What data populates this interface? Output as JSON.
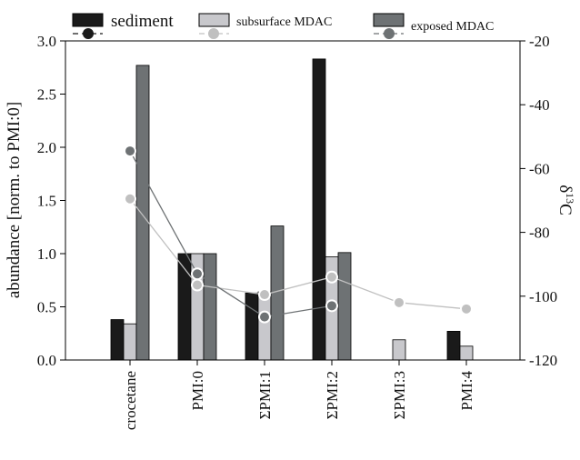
{
  "chart_data": {
    "type": "bar",
    "categories": [
      "crocetane",
      "PMI:0",
      "ΣPMI:1",
      "ΣPMI:2",
      "ΣPMI:3",
      "PMI:4"
    ],
    "ylabel_left": "abundance [norm. to PMI:0]",
    "ylabel_right_main": "δ",
    "ylabel_right_sup": "13",
    "ylabel_right_tail": "C",
    "ylim_left": [
      0,
      3.0
    ],
    "ylim_right": [
      -120,
      -20
    ],
    "left_ticks": [
      "0.0",
      "0.5",
      "1.0",
      "1.5",
      "2.0",
      "2.5",
      "3.0"
    ],
    "right_ticks": [
      "-120",
      "-100",
      "-80",
      "-60",
      "-40",
      "-20"
    ],
    "bar_series": [
      {
        "name": "sediment",
        "color": "#1a1a1a",
        "values": [
          0.38,
          1.0,
          0.63,
          2.83,
          null,
          0.27
        ]
      },
      {
        "name": "subsurface MDAC",
        "color": "#c8c8cc",
        "values": [
          0.34,
          1.0,
          0.64,
          0.97,
          0.19,
          0.13
        ]
      },
      {
        "name": "exposed MDAC",
        "color": "#6e7274",
        "values": [
          2.77,
          1.0,
          1.26,
          1.01,
          null,
          null
        ]
      }
    ],
    "line_series": [
      {
        "name": "sediment",
        "color": "#1a1a1a",
        "values": [
          null,
          null,
          null,
          null,
          null,
          null
        ]
      },
      {
        "name": "subsurface MDAC",
        "color": "#c0c0c0",
        "values": [
          -69.5,
          -96.5,
          -99.5,
          -94,
          -102,
          -104
        ]
      },
      {
        "name": "exposed MDAC",
        "color": "#6e7274",
        "values": [
          -54.5,
          -93,
          -106.5,
          -103,
          null,
          null
        ]
      }
    ],
    "legend": [
      {
        "label": "sediment",
        "bar_color": "#1a1a1a",
        "marker_color": "#1a1a1a",
        "line_color": "#1a1a1a"
      },
      {
        "label": "subsurface MDAC",
        "bar_color": "#c8c8cc",
        "marker_color": "#c0c0c0",
        "line_color": "#c0c0c0"
      },
      {
        "label": "exposed MDAC",
        "bar_color": "#6e7274",
        "marker_color": "#6e7274",
        "line_color": "#6e7274"
      }
    ]
  }
}
